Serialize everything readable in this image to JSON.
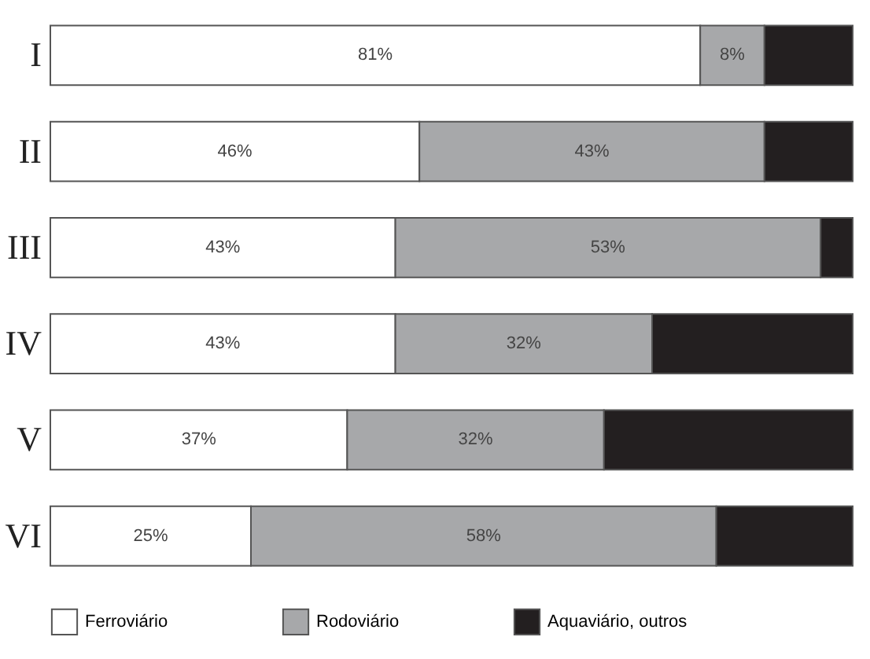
{
  "chart_data": {
    "type": "bar",
    "orientation": "horizontal",
    "stacked": true,
    "categories": [
      "I",
      "II",
      "III",
      "IV",
      "V",
      "VI"
    ],
    "xlim": [
      0,
      100
    ],
    "tick_labels": "y",
    "legend": "bottom",
    "series": [
      {
        "name": "Ferroviário",
        "color": "#ffffff",
        "values": [
          81,
          46,
          43,
          43,
          37,
          25
        ],
        "value_labels": [
          "81%",
          "46%",
          "43%",
          "43%",
          "37%",
          "25%"
        ]
      },
      {
        "name": "Rodoviário",
        "color": "#a7a8aa",
        "values": [
          8,
          43,
          53,
          32,
          32,
          58
        ],
        "value_labels": [
          "8%",
          "43%",
          "53%",
          "32%",
          "32%",
          "58%"
        ]
      },
      {
        "name": "Aquaviário, outros",
        "color": "#231f20",
        "values": [
          11,
          11,
          4,
          25,
          31,
          17
        ],
        "value_labels": [
          null,
          null,
          null,
          null,
          null,
          null
        ]
      }
    ]
  }
}
